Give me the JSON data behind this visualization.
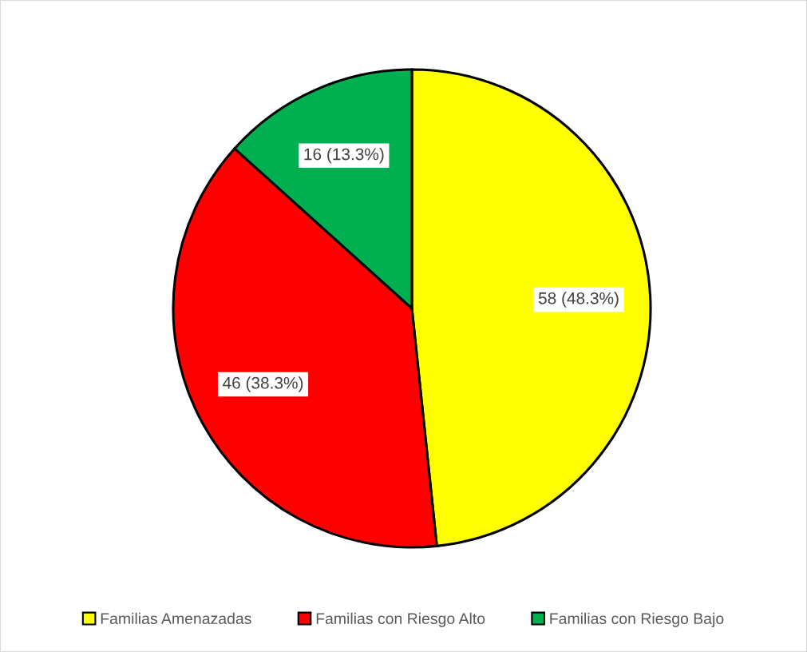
{
  "chart_data": {
    "type": "pie",
    "categories": [
      "Familias Amenazadas",
      "Familias con Riesgo Alto",
      "Familias con Riesgo Bajo"
    ],
    "values": [
      58,
      46,
      16
    ],
    "colors": [
      "#ffff00",
      "#ff0000",
      "#00b050"
    ],
    "value_labels": [
      "58 (48.3%)",
      "46 (38.3%)",
      "16 (13.3%)"
    ],
    "legend": "bottom"
  }
}
